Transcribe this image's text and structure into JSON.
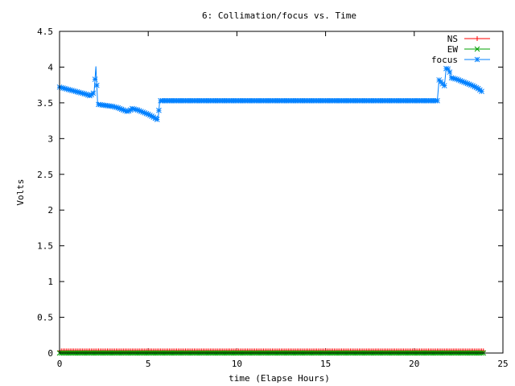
{
  "chart_data": {
    "type": "line",
    "title": "6: Collimation/focus vs. Time",
    "xlabel": "time (Elapse Hours)",
    "ylabel": "Volts",
    "xlim": [
      0,
      25
    ],
    "ylim": [
      0,
      4.5
    ],
    "x_ticks": [
      "0",
      "5",
      "10",
      "15",
      "20",
      "25"
    ],
    "y_ticks": [
      "0",
      "0.5",
      "1",
      "1.5",
      "2",
      "2.5",
      "3",
      "3.5",
      "4",
      "4.5"
    ],
    "x_tick_values": [
      0,
      5,
      10,
      15,
      20,
      25
    ],
    "y_tick_values": [
      0,
      0.5,
      1,
      1.5,
      2,
      2.5,
      3,
      3.5,
      4,
      4.5
    ],
    "grid": false,
    "legend_position": "top-right",
    "series": [
      {
        "name": "NS",
        "color": "#ff0000",
        "marker": "plus",
        "sampling": "every 0.1 h from 0 to 23.9 h",
        "x_range": [
          0,
          23.9
        ],
        "constant_value": 0.03
      },
      {
        "name": "EW",
        "color": "#00a000",
        "marker": "x",
        "sampling": "every 0.1 h from 0 to 23.9 h",
        "x_range": [
          0,
          23.9
        ],
        "constant_value": 0.0
      },
      {
        "name": "focus",
        "color": "#0080ff",
        "marker": "star",
        "points": [
          [
            0.0,
            3.72
          ],
          [
            0.3,
            3.7
          ],
          [
            0.6,
            3.68
          ],
          [
            0.9,
            3.66
          ],
          [
            1.2,
            3.64
          ],
          [
            1.5,
            3.62
          ],
          [
            1.7,
            3.6
          ],
          [
            1.85,
            3.62
          ],
          [
            1.95,
            3.65
          ],
          [
            2.05,
            4.01
          ],
          [
            2.15,
            3.48
          ],
          [
            2.4,
            3.47
          ],
          [
            2.7,
            3.46
          ],
          [
            3.0,
            3.45
          ],
          [
            3.3,
            3.43
          ],
          [
            3.6,
            3.4
          ],
          [
            3.8,
            3.38
          ],
          [
            3.95,
            3.39
          ],
          [
            4.1,
            3.42
          ],
          [
            4.4,
            3.4
          ],
          [
            4.7,
            3.37
          ],
          [
            5.0,
            3.34
          ],
          [
            5.3,
            3.3
          ],
          [
            5.55,
            3.26
          ],
          [
            5.65,
            3.53
          ],
          [
            6.5,
            3.53
          ],
          [
            8.0,
            3.53
          ],
          [
            10.0,
            3.53
          ],
          [
            12.0,
            3.53
          ],
          [
            14.0,
            3.53
          ],
          [
            16.0,
            3.53
          ],
          [
            18.0,
            3.53
          ],
          [
            20.0,
            3.53
          ],
          [
            21.3,
            3.53
          ],
          [
            21.4,
            3.82
          ],
          [
            21.55,
            3.78
          ],
          [
            21.7,
            3.74
          ],
          [
            21.8,
            3.98
          ],
          [
            21.95,
            3.97
          ],
          [
            22.1,
            3.85
          ],
          [
            22.4,
            3.83
          ],
          [
            22.7,
            3.8
          ],
          [
            23.0,
            3.77
          ],
          [
            23.3,
            3.74
          ],
          [
            23.6,
            3.7
          ],
          [
            23.8,
            3.66
          ]
        ],
        "marker_spacing_hours": 0.1
      }
    ]
  }
}
